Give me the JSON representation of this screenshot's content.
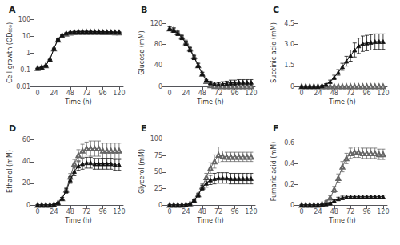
{
  "chart_data": [
    {
      "type": "line",
      "title": "A",
      "x_label": "Time (h)",
      "y_label": "Cell growth (OD₆₀₀)",
      "x": [
        0,
        6,
        12,
        18,
        24,
        30,
        36,
        42,
        48,
        54,
        60,
        66,
        72,
        78,
        84,
        90,
        96,
        102,
        108,
        114,
        120
      ],
      "xlim": [
        -6,
        126
      ],
      "xticks": [
        0,
        24,
        48,
        72,
        96,
        120
      ],
      "ylim": [
        0.01,
        100
      ],
      "yticks": [
        0.01,
        0.1,
        1,
        10,
        100
      ],
      "log": "y",
      "grid": false,
      "series": [
        {
          "color": "#666666",
          "marker": "open_triangle",
          "line_style": "solid",
          "values": [
            0.12,
            0.14,
            0.18,
            0.4,
            1.8,
            6.0,
            10.5,
            13.5,
            15.5,
            16.5,
            17.0,
            17.0,
            17.0,
            17.0,
            17.0,
            17.0,
            16.5,
            16.5,
            16.5,
            16.0,
            16.0
          ],
          "errors": [
            0.0,
            0.0,
            0.0,
            0.0,
            0.1,
            0.3,
            0.5,
            0.7,
            0.7,
            0.7,
            0.7,
            0.7,
            0.7,
            0.7,
            0.7,
            0.7,
            0.7,
            0.7,
            0.7,
            0.7,
            0.7
          ]
        },
        {
          "color": "#111111",
          "marker": "triangle",
          "line_style": "solid",
          "values": [
            0.12,
            0.14,
            0.18,
            0.4,
            1.8,
            6.5,
            11.5,
            15.0,
            17.0,
            18.0,
            18.5,
            18.5,
            18.5,
            18.5,
            18.0,
            18.0,
            18.0,
            17.5,
            17.5,
            17.0,
            17.0
          ],
          "errors": [
            0.0,
            0.0,
            0.0,
            0.0,
            0.1,
            0.3,
            0.5,
            0.7,
            0.7,
            0.7,
            0.7,
            0.7,
            0.7,
            0.7,
            0.7,
            0.7,
            0.7,
            0.7,
            0.7,
            0.7,
            0.7
          ]
        }
      ]
    },
    {
      "type": "line",
      "title": "B",
      "x_label": "Time (h)",
      "y_label": "Glucose (mM)",
      "x": [
        0,
        6,
        12,
        18,
        24,
        30,
        36,
        42,
        48,
        54,
        60,
        66,
        72,
        78,
        84,
        90,
        96,
        102,
        108,
        114,
        120
      ],
      "xlim": [
        -6,
        126
      ],
      "xticks": [
        0,
        24,
        48,
        72,
        96,
        120
      ],
      "ylim": [
        0,
        128
      ],
      "yticks": [
        0,
        40,
        80,
        120
      ],
      "grid": false,
      "series": [
        {
          "color": "#666666",
          "marker": "open_triangle",
          "line_style": "solid",
          "values": [
            110,
            108,
            103,
            95,
            84,
            72,
            57,
            40,
            24,
            10,
            2,
            0.5,
            0.2,
            0.1,
            0.1,
            0.1,
            0.1,
            0.1,
            0.1,
            0.1,
            0.1
          ],
          "errors": [
            4,
            4,
            4,
            4,
            4,
            4,
            4,
            4,
            3,
            3,
            1,
            0.5,
            0.2,
            0.1,
            0.1,
            0.1,
            0.1,
            0.1,
            0.1,
            0.1,
            0.1
          ]
        },
        {
          "color": "#111111",
          "marker": "triangle",
          "line_style": "solid",
          "values": [
            110,
            107,
            101,
            93,
            82,
            70,
            55,
            40,
            24,
            13,
            7,
            5,
            4,
            5,
            6,
            7,
            7,
            8,
            8,
            8,
            8
          ],
          "errors": [
            4,
            4,
            4,
            4,
            4,
            4,
            4,
            4,
            3,
            3,
            3,
            3,
            3,
            4,
            4,
            5,
            5,
            5,
            5,
            5,
            5
          ]
        }
      ]
    },
    {
      "type": "line",
      "title": "C",
      "x_label": "Time (h)",
      "y_label": "Succinic acid (mM)",
      "x": [
        0,
        6,
        12,
        18,
        24,
        30,
        36,
        42,
        48,
        54,
        60,
        66,
        72,
        78,
        84,
        90,
        96,
        102,
        108,
        114,
        120
      ],
      "xlim": [
        -6,
        126
      ],
      "xticks": [
        0,
        24,
        48,
        72,
        96,
        120
      ],
      "ylim": [
        0,
        4.8
      ],
      "yticks": [
        0,
        1.5,
        {
          "value": 3.0,
          "label": "3.0"
        },
        4.5
      ],
      "grid": false,
      "series": [
        {
          "color": "#666666",
          "marker": "open_triangle",
          "line_style": "solid",
          "values": [
            0,
            0,
            0,
            0,
            0,
            0,
            0,
            0,
            0,
            0,
            0,
            0,
            0,
            0,
            0,
            0,
            0,
            0,
            0,
            0,
            0
          ],
          "errors": [
            0,
            0,
            0,
            0,
            0,
            0,
            0,
            0,
            0,
            0,
            0,
            0,
            0,
            0,
            0,
            0,
            0,
            0,
            0,
            0,
            0
          ]
        },
        {
          "color": "#111111",
          "marker": "triangle",
          "line_style": "solid",
          "values": [
            0,
            0,
            0,
            0,
            0,
            0.05,
            0.15,
            0.35,
            0.65,
            1.0,
            1.4,
            1.8,
            2.2,
            2.6,
            2.9,
            3.05,
            3.1,
            3.15,
            3.2,
            3.2,
            3.2
          ],
          "errors": [
            0,
            0,
            0,
            0,
            0,
            0.02,
            0.05,
            0.1,
            0.15,
            0.2,
            0.25,
            0.35,
            0.4,
            0.5,
            0.55,
            0.55,
            0.55,
            0.55,
            0.55,
            0.55,
            0.55
          ]
        }
      ]
    },
    {
      "type": "line",
      "title": "D",
      "x_label": "Time (h)",
      "y_label": "Ethanol (mM)",
      "x": [
        0,
        6,
        12,
        18,
        24,
        30,
        36,
        42,
        48,
        54,
        60,
        66,
        72,
        78,
        84,
        90,
        96,
        102,
        108,
        114,
        120
      ],
      "xlim": [
        -6,
        126
      ],
      "xticks": [
        0,
        24,
        48,
        72,
        96,
        120
      ],
      "ylim": [
        0,
        62
      ],
      "yticks": [
        0,
        20,
        40,
        60
      ],
      "grid": false,
      "series": [
        {
          "color": "#666666",
          "marker": "open_triangle",
          "line_style": "solid",
          "values": [
            0,
            0,
            0,
            0,
            0.5,
            2,
            6,
            14,
            26,
            38,
            46,
            50,
            52,
            52,
            52,
            52,
            50,
            50,
            50,
            50,
            50
          ],
          "errors": [
            0,
            0,
            0,
            0,
            0.2,
            0.5,
            1,
            2,
            3,
            4,
            5,
            6,
            6,
            7,
            7,
            7,
            7,
            7,
            7,
            7,
            7
          ]
        },
        {
          "color": "#111111",
          "marker": "triangle",
          "line_style": "solid",
          "values": [
            0,
            0,
            0,
            0,
            0.5,
            2,
            6,
            13,
            23,
            31,
            36,
            38,
            39,
            39,
            38,
            38,
            38,
            38,
            38,
            37,
            37
          ],
          "errors": [
            0,
            0,
            0,
            0,
            0.2,
            0.5,
            1,
            2,
            3,
            4,
            4,
            5,
            5,
            5,
            5,
            5,
            5,
            5,
            5,
            5,
            5
          ]
        }
      ]
    },
    {
      "type": "line",
      "title": "E",
      "x_label": "Time (h)",
      "y_label": "Glycerol (mM)",
      "x": [
        0,
        6,
        12,
        18,
        24,
        30,
        36,
        42,
        48,
        54,
        60,
        66,
        72,
        78,
        84,
        90,
        96,
        102,
        108,
        114,
        120
      ],
      "xlim": [
        -6,
        126
      ],
      "xticks": [
        0,
        24,
        48,
        72,
        96,
        120
      ],
      "ylim": [
        0,
        102
      ],
      "yticks": [
        0,
        25,
        50,
        75,
        100
      ],
      "grid": false,
      "series": [
        {
          "color": "#666666",
          "marker": "open_triangle",
          "line_style": "solid",
          "values": [
            0,
            0,
            0,
            0,
            0.5,
            2,
            7,
            16,
            28,
            42,
            56,
            66,
            76,
            74,
            73,
            73,
            73,
            73,
            73,
            73,
            73
          ],
          "errors": [
            0,
            0,
            0,
            0,
            0.2,
            0.5,
            1,
            2,
            4,
            6,
            8,
            10,
            12,
            8,
            7,
            7,
            7,
            7,
            7,
            7,
            7
          ]
        },
        {
          "color": "#111111",
          "marker": "triangle",
          "line_style": "solid",
          "values": [
            0,
            0,
            0,
            0,
            0.5,
            2,
            7,
            15,
            26,
            33,
            38,
            40,
            41,
            41,
            41,
            40,
            40,
            40,
            40,
            40,
            40
          ],
          "errors": [
            0,
            0,
            0,
            0,
            0.2,
            0.5,
            1,
            2,
            4,
            6,
            7,
            8,
            8,
            8,
            8,
            8,
            8,
            8,
            8,
            8,
            8
          ]
        }
      ]
    },
    {
      "type": "line",
      "title": "F",
      "x_label": "Time (h)",
      "y_label": "Fumaric acid (mM)",
      "x": [
        0,
        6,
        12,
        18,
        24,
        30,
        36,
        42,
        48,
        54,
        60,
        66,
        72,
        78,
        84,
        90,
        96,
        102,
        108,
        114,
        120
      ],
      "xlim": [
        -6,
        126
      ],
      "xticks": [
        0,
        24,
        48,
        72,
        96,
        120
      ],
      "ylim": [
        0,
        0.65
      ],
      "yticks": [
        0,
        0.2,
        0.4,
        0.6
      ],
      "grid": false,
      "series": [
        {
          "color": "#666666",
          "marker": "open_triangle",
          "line_style": "solid",
          "values": [
            0,
            0,
            0,
            0,
            0,
            0.01,
            0.03,
            0.07,
            0.15,
            0.26,
            0.37,
            0.45,
            0.5,
            0.51,
            0.51,
            0.5,
            0.5,
            0.5,
            0.5,
            0.49,
            0.49
          ],
          "errors": [
            0,
            0,
            0,
            0,
            0,
            0.005,
            0.01,
            0.02,
            0.03,
            0.04,
            0.05,
            0.05,
            0.05,
            0.05,
            0.05,
            0.05,
            0.05,
            0.05,
            0.05,
            0.05,
            0.05
          ]
        },
        {
          "color": "#111111",
          "marker": "triangle",
          "line_style": "solid",
          "values": [
            0,
            0,
            0,
            0,
            0,
            0.005,
            0.01,
            0.02,
            0.04,
            0.06,
            0.07,
            0.08,
            0.08,
            0.08,
            0.08,
            0.08,
            0.08,
            0.08,
            0.08,
            0.08,
            0.08
          ],
          "errors": [
            0,
            0,
            0,
            0,
            0,
            0.002,
            0.005,
            0.008,
            0.01,
            0.015,
            0.015,
            0.015,
            0.015,
            0.015,
            0.015,
            0.015,
            0.015,
            0.015,
            0.015,
            0.015,
            0.015
          ]
        }
      ]
    }
  ]
}
